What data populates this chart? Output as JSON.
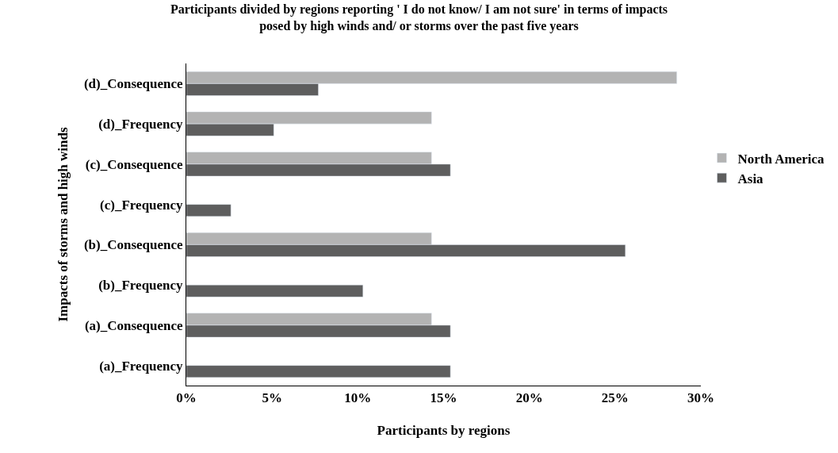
{
  "chart_data": {
    "type": "bar",
    "orientation": "horizontal",
    "title": "Participants divided by regions reporting ' I do not know/ I am not sure' in terms of impacts posed by high winds and/ or storms over the past five years",
    "xlabel": "Participants by regions",
    "ylabel": "Impacts of storms and high winds",
    "categories": [
      "(d)_Consequence",
      "(d)_Frequency",
      "(c)_Consequence",
      "(c)_Frequency",
      "(b)_Consequence",
      "(b)_Frequency",
      "(a)_Consequence",
      "(a)_Frequency"
    ],
    "series": [
      {
        "name": "North America",
        "color": "#b3b3b3",
        "values": [
          28.6,
          14.3,
          14.3,
          null,
          14.3,
          null,
          14.3,
          null
        ]
      },
      {
        "name": "Asia",
        "color": "#5e5e5e",
        "values": [
          7.7,
          5.1,
          15.4,
          2.6,
          25.6,
          10.3,
          15.4,
          15.4
        ]
      }
    ],
    "xlim": [
      0,
      30
    ],
    "xticks": [
      {
        "value": 0,
        "label": "0%"
      },
      {
        "value": 5,
        "label": "5%"
      },
      {
        "value": 10,
        "label": "10%"
      },
      {
        "value": 15,
        "label": "15%"
      },
      {
        "value": 20,
        "label": "20%"
      },
      {
        "value": 25,
        "label": "25%"
      },
      {
        "value": 30,
        "label": "30%"
      }
    ],
    "legend": "right"
  }
}
